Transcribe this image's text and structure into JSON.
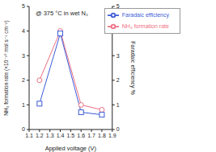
{
  "chart_data": {
    "type": "line",
    "annotation": "@ 375 °C in wet N₂",
    "x_label": "Applied voltage (V)",
    "y_label": "NH₃ formation rate (×10⁻¹⁰ mol s⁻¹ cm⁻²)",
    "y2_label": "Faradaic efficiency %",
    "x": [
      1.2,
      1.4,
      1.6,
      1.8
    ],
    "xlim": [
      1.1,
      1.9
    ],
    "xticks": [
      1.1,
      1.2,
      1.3,
      1.4,
      1.5,
      1.6,
      1.7,
      1.8,
      1.9
    ],
    "ylim": [
      0,
      5
    ],
    "yticks": [
      0,
      1,
      2,
      3,
      4,
      5
    ],
    "y2lim": [
      0,
      5
    ],
    "y2ticks": [
      0,
      1,
      2,
      3,
      4,
      5
    ],
    "legend": "upper right",
    "series": [
      {
        "name": "NH₃ formation rate",
        "color": "#ee6f82",
        "marker": "circle",
        "values": [
          2.0,
          4.0,
          1.0,
          0.8
        ]
      },
      {
        "name": "Faradaic efficiency",
        "color": "#3c5bd8",
        "marker": "square",
        "values": [
          1.05,
          3.9,
          0.7,
          0.6
        ],
        "axis": "y2"
      }
    ]
  }
}
